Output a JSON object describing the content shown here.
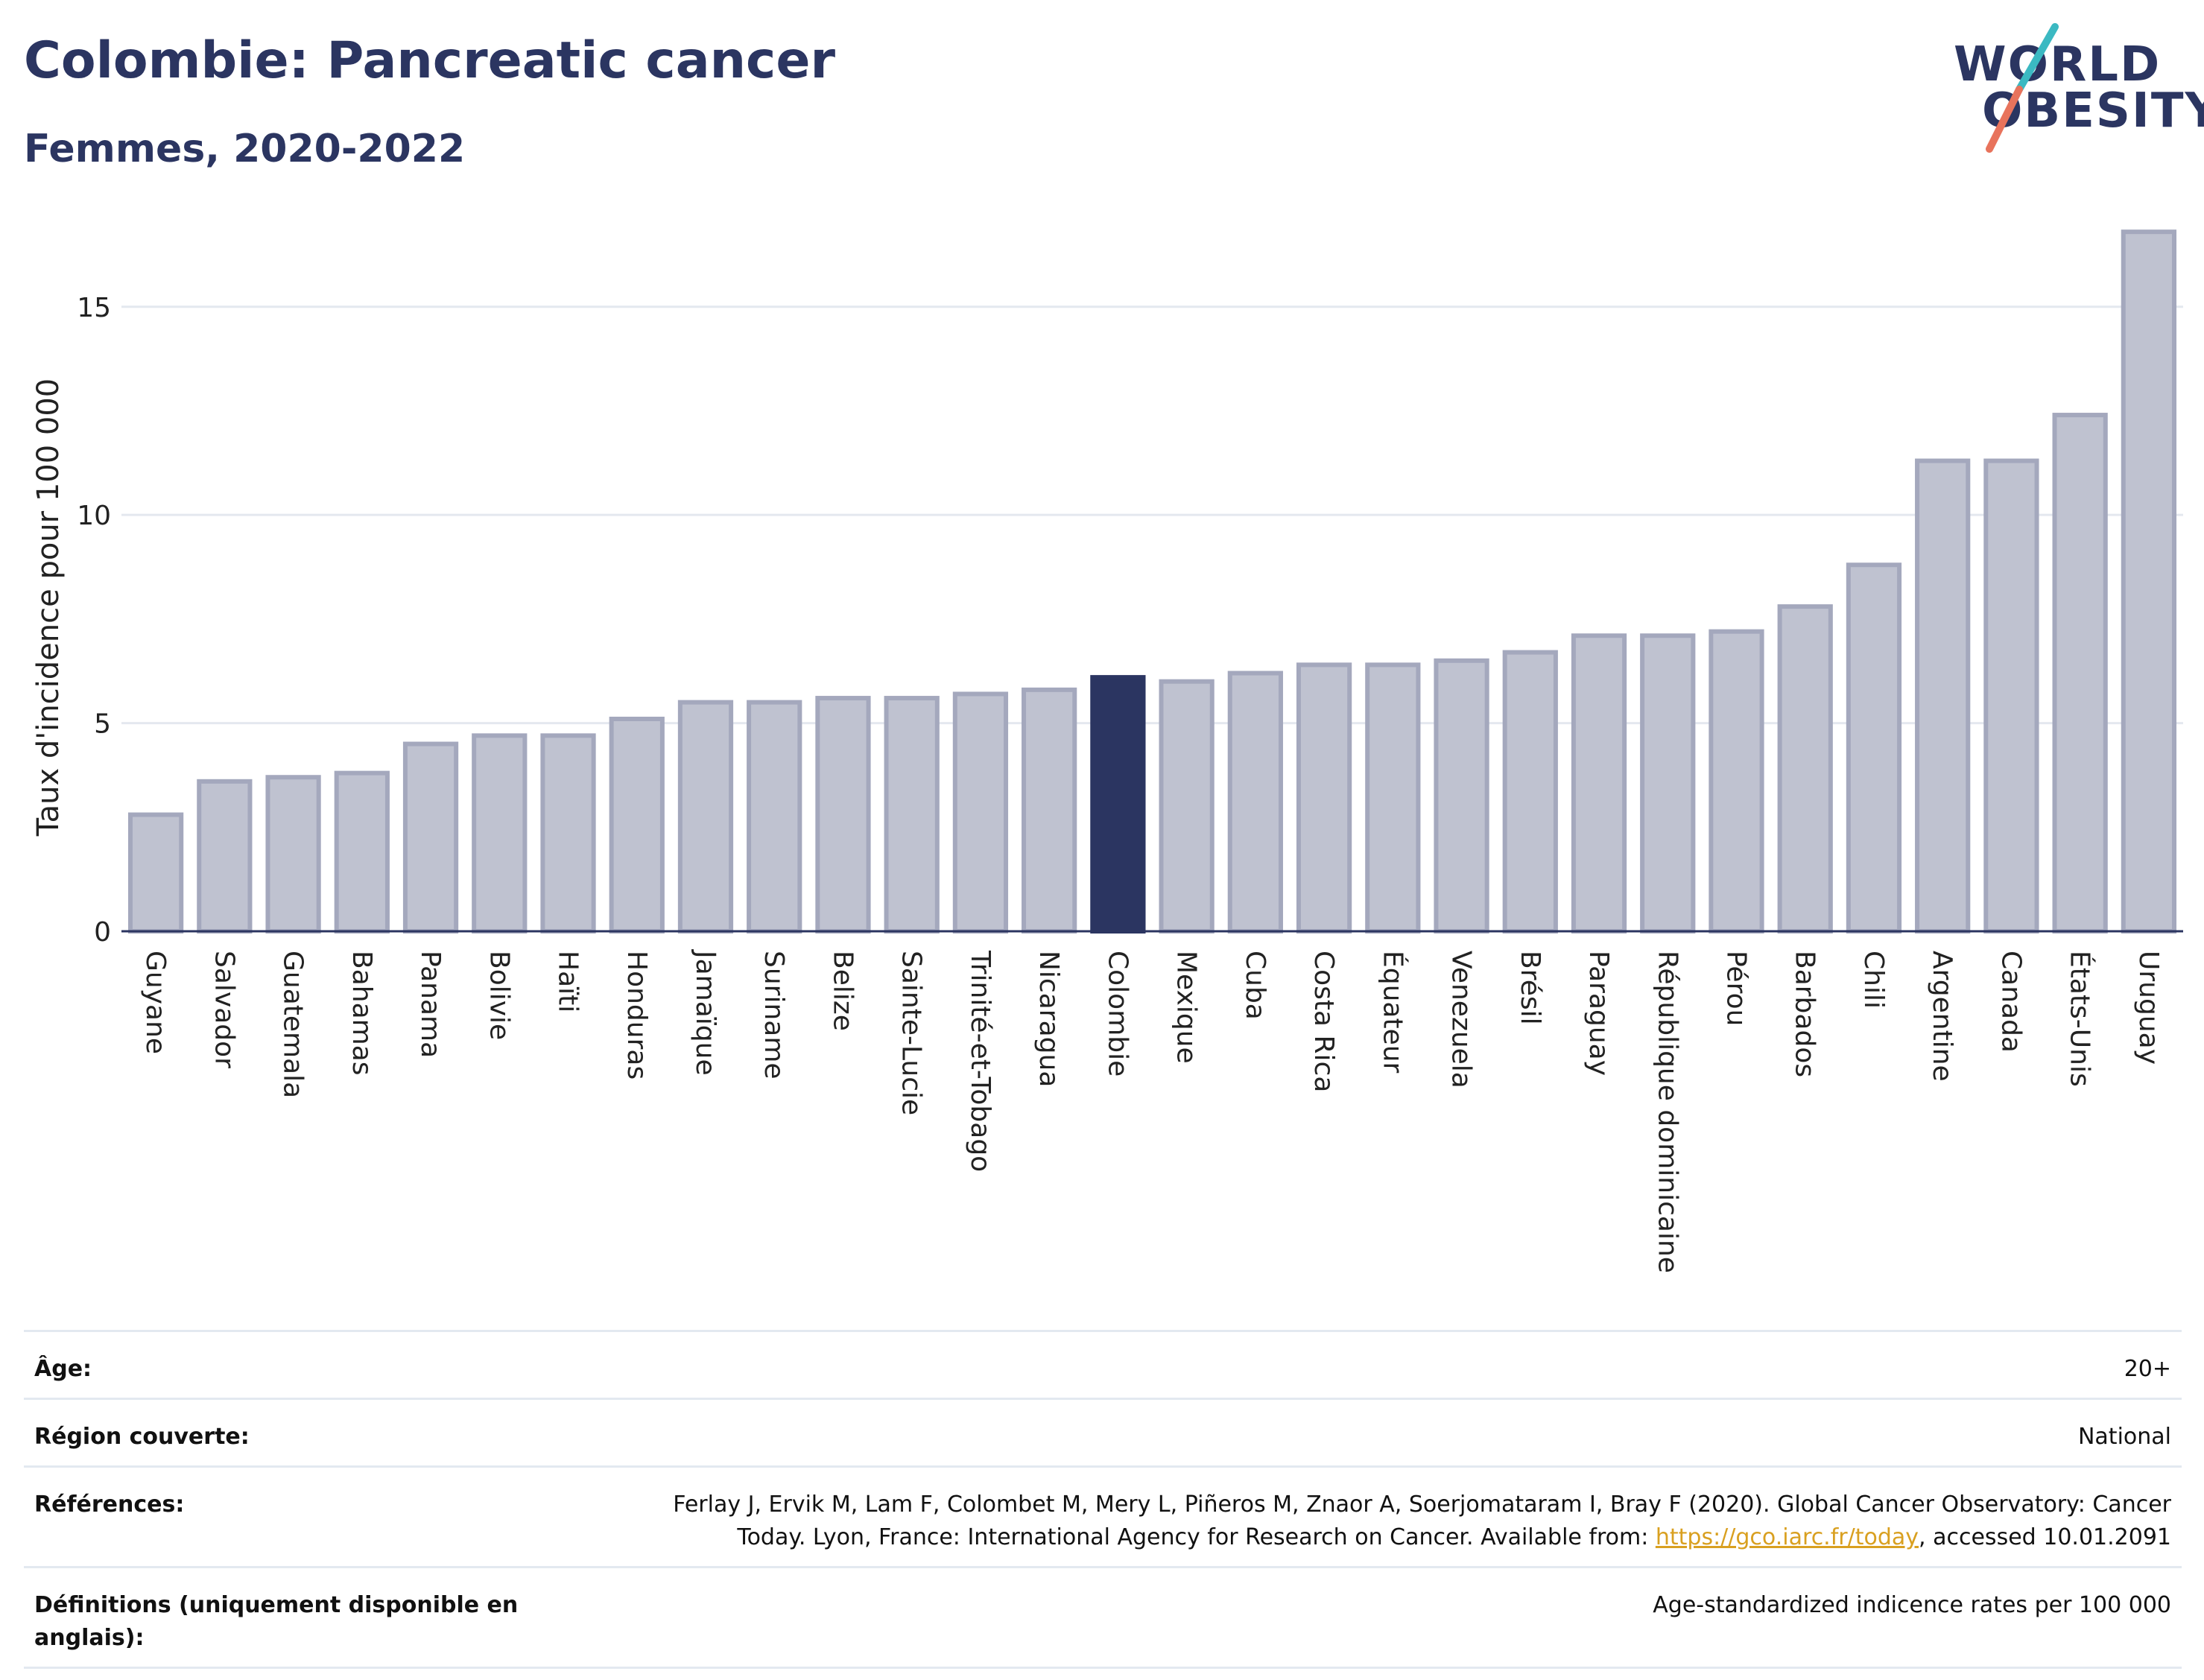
{
  "header": {
    "title": "Colombie: Pancreatic cancer",
    "subtitle": "Femmes, 2020-2022"
  },
  "logo": {
    "line1": "WORLD",
    "line2": "OBESITY",
    "colors": {
      "text": "#2b3561",
      "slash_top": "#3bb9c2",
      "slash_bottom": "#e8735c"
    }
  },
  "colors": {
    "bar_default": "#bfc2d0",
    "bar_default_stroke": "#a4a8bd",
    "bar_highlight": "#2b3561",
    "grid": "#e4e8ef",
    "axis": "#2b3561"
  },
  "chart_data": {
    "type": "bar",
    "ylabel": "Taux d'incidence pour 100 000",
    "xlabel": "",
    "ylim": [
      0,
      17
    ],
    "yticks": [
      0,
      5,
      10,
      15
    ],
    "grid": true,
    "highlight": "Colombie",
    "categories": [
      "Guyane",
      "Salvador",
      "Guatemala",
      "Bahamas",
      "Panama",
      "Bolivie",
      "Haïti",
      "Honduras",
      "Jamaïque",
      "Suriname",
      "Belize",
      "Sainte-Lucie",
      "Trinité-et-Tobago",
      "Nicaragua",
      "Colombie",
      "Mexique",
      "Cuba",
      "Costa Rica",
      "Équateur",
      "Venezuela",
      "Brésil",
      "Paraguay",
      "République dominicaine",
      "Pérou",
      "Barbados",
      "Chili",
      "Argentine",
      "Canada",
      "États-Unis",
      "Uruguay"
    ],
    "values": [
      2.8,
      3.6,
      3.7,
      3.8,
      4.5,
      4.7,
      4.7,
      5.1,
      5.5,
      5.5,
      5.6,
      5.6,
      5.7,
      5.8,
      6.1,
      6.0,
      6.2,
      6.4,
      6.4,
      6.5,
      6.7,
      7.1,
      7.1,
      7.2,
      7.8,
      8.8,
      11.3,
      11.3,
      12.4,
      16.8
    ]
  },
  "meta": {
    "age_label": "Âge:",
    "age_value": "20+",
    "region_label": "Région couverte:",
    "region_value": "National",
    "refs_label": "Références:",
    "refs_text_1": "Ferlay J, Ervik M, Lam F, Colombet M, Mery L, Piñeros M, Znaor A, Soerjomataram I, Bray F (2020). Global Cancer Observatory: Cancer",
    "refs_text_2": "Today. Lyon, France: International Agency for Research on Cancer. Available from: ",
    "refs_link": "https://gco.iarc.fr/today",
    "refs_text_3": ", accessed 10.01.2091",
    "defs_label": "Définitions (uniquement disponible en anglais):",
    "defs_value": "Age-standardized indicence rates per 100 000"
  }
}
